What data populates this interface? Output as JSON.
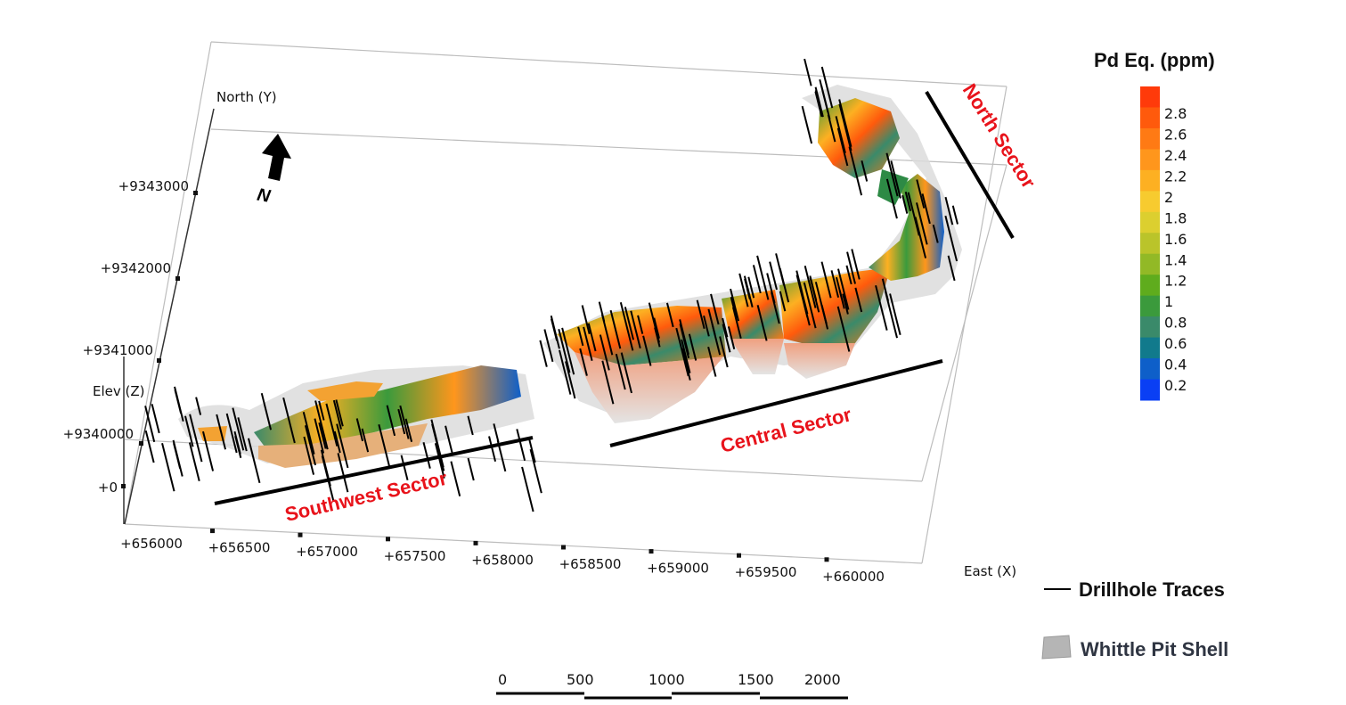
{
  "axes": {
    "north_label": "North (Y)",
    "elev_label": "Elev (Z)",
    "east_label": "East (X)",
    "north_ticks": [
      "+9343000",
      "+9342000",
      "+9341000",
      "+9340000"
    ],
    "elev_ticks": [
      "+0"
    ],
    "east_ticks": [
      "+656000",
      "+656500",
      "+657000",
      "+657500",
      "+658000",
      "+658500",
      "+659000",
      "+659500",
      "+660000"
    ]
  },
  "north_arrow": {
    "label": "N"
  },
  "sectors": {
    "southwest": "Southwest Sector",
    "central": "Central Sector",
    "north": "North Sector"
  },
  "legend": {
    "title": "Pd Eq. (ppm)",
    "ticks": [
      "2.8",
      "2.6",
      "2.4",
      "2.2",
      "2",
      "1.8",
      "1.6",
      "1.4",
      "1.2",
      "1",
      "0.8",
      "0.6",
      "0.4",
      "0.2"
    ],
    "colors": [
      "#ff3a0a",
      "#ff5a0c",
      "#ff7a14",
      "#ff961c",
      "#fdb022",
      "#f7cb2f",
      "#dccf2f",
      "#bac42a",
      "#92b926",
      "#5fac1d",
      "#3b9a3c",
      "#3a8a6a",
      "#117a8c",
      "#0e5fc9",
      "#0a3ff4"
    ],
    "drillhole_label": "Drillhole Traces",
    "pit_shell_label": "Whittle Pit Shell"
  },
  "scale_bar": {
    "ticks": [
      "0",
      "500",
      "1000",
      "1500",
      "2000"
    ]
  },
  "colors": {
    "sector_label": "#e8131b",
    "pit_shell": "#d4d4d4",
    "drillhole": "#000000"
  }
}
